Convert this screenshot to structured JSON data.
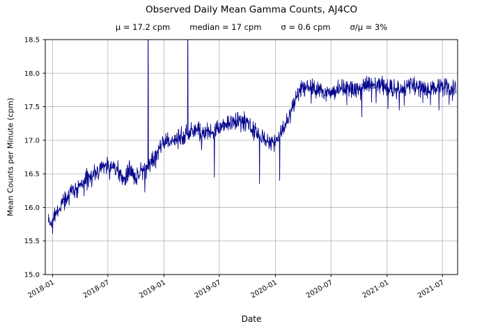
{
  "chart_data": {
    "type": "line",
    "title": "Observed Daily Mean Gamma Counts, AJ4CO",
    "subtitle_parts": [
      "μ = 17.2 cpm",
      "median = 17 cpm",
      "σ = 0.6 cpm",
      "σ/μ = 3%"
    ],
    "xlabel": "Date",
    "ylabel": "Mean Counts per Minute (cpm)",
    "ylim": [
      15.0,
      18.5
    ],
    "xlim": [
      "2017-12-08",
      "2021-08-20"
    ],
    "y_ticks": [
      15.0,
      15.5,
      16.0,
      16.5,
      17.0,
      17.5,
      18.0,
      18.5
    ],
    "x_ticks": [
      "2018-01",
      "2018-07",
      "2019-01",
      "2019-07",
      "2020-01",
      "2020-07",
      "2021-01",
      "2021-07"
    ],
    "grid": true,
    "legend": "none",
    "line_color": "#00008b",
    "series": [
      {
        "name": "observed daily mean gamma counts",
        "anchors": [
          [
            "2017-12-18",
            15.85
          ],
          [
            "2018-01-01",
            15.75
          ],
          [
            "2018-01-15",
            15.95
          ],
          [
            "2018-02-01",
            16.05
          ],
          [
            "2018-03-01",
            16.2
          ],
          [
            "2018-04-01",
            16.35
          ],
          [
            "2018-05-01",
            16.45
          ],
          [
            "2018-06-01",
            16.55
          ],
          [
            "2018-06-20",
            16.65
          ],
          [
            "2018-07-10",
            16.6
          ],
          [
            "2018-08-01",
            16.55
          ],
          [
            "2018-08-20",
            16.4
          ],
          [
            "2018-09-10",
            16.55
          ],
          [
            "2018-10-01",
            16.45
          ],
          [
            "2018-10-20",
            16.55
          ],
          [
            "2018-11-10",
            16.6
          ],
          [
            "2018-12-01",
            16.75
          ],
          [
            "2018-12-20",
            16.95
          ],
          [
            "2019-01-10",
            17.0
          ],
          [
            "2019-02-01",
            17.0
          ],
          [
            "2019-03-01",
            17.05
          ],
          [
            "2019-04-01",
            17.15
          ],
          [
            "2019-05-01",
            17.15
          ],
          [
            "2019-06-01",
            17.1
          ],
          [
            "2019-07-01",
            17.2
          ],
          [
            "2019-08-01",
            17.25
          ],
          [
            "2019-09-01",
            17.3
          ],
          [
            "2019-10-01",
            17.25
          ],
          [
            "2019-11-01",
            17.1
          ],
          [
            "2019-12-01",
            17.0
          ],
          [
            "2019-12-20",
            16.95
          ],
          [
            "2020-01-10",
            17.05
          ],
          [
            "2020-02-01",
            17.2
          ],
          [
            "2020-03-01",
            17.55
          ],
          [
            "2020-03-20",
            17.75
          ],
          [
            "2020-04-15",
            17.8
          ],
          [
            "2020-05-15",
            17.75
          ],
          [
            "2020-06-15",
            17.7
          ],
          [
            "2020-07-15",
            17.75
          ],
          [
            "2020-08-15",
            17.8
          ],
          [
            "2020-09-15",
            17.75
          ],
          [
            "2020-10-15",
            17.8
          ],
          [
            "2020-11-15",
            17.85
          ],
          [
            "2020-12-15",
            17.8
          ],
          [
            "2021-01-15",
            17.8
          ],
          [
            "2021-02-15",
            17.75
          ],
          [
            "2021-03-15",
            17.8
          ],
          [
            "2021-04-15",
            17.8
          ],
          [
            "2021-05-15",
            17.75
          ],
          [
            "2021-06-15",
            17.8
          ],
          [
            "2021-07-15",
            17.8
          ],
          [
            "2021-08-15",
            17.75
          ]
        ],
        "spikes": [
          [
            "2018-11-10",
            19.2
          ],
          [
            "2019-03-20",
            19.0
          ],
          [
            "2019-06-15",
            16.45
          ],
          [
            "2019-11-10",
            16.35
          ],
          [
            "2020-01-15",
            16.4
          ],
          [
            "2020-10-10",
            17.35
          ],
          [
            "2021-02-10",
            17.45
          ],
          [
            "2021-06-20",
            17.45
          ]
        ]
      }
    ]
  }
}
